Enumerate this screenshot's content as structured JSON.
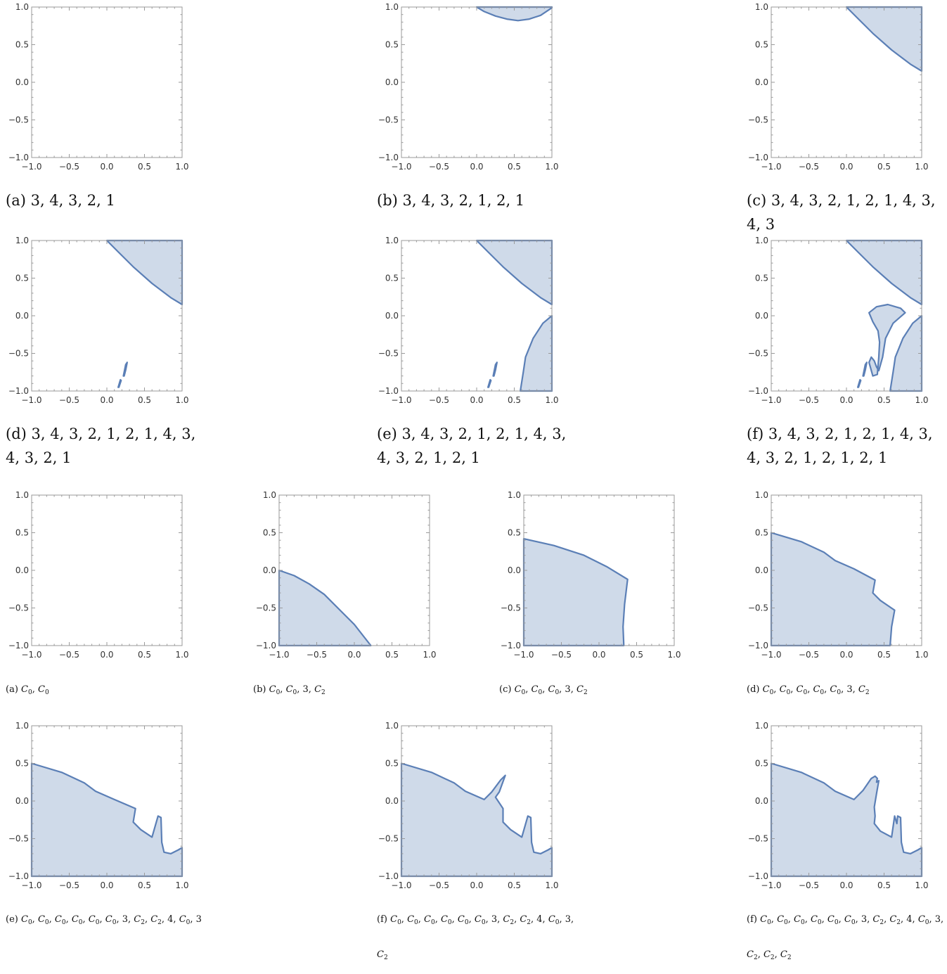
{
  "colors": {
    "fill": "#cfdae9",
    "stroke": "#5b7fb6",
    "frame": "#9a9a9a"
  },
  "chart_data": [
    {
      "type": "area",
      "axis": {
        "xlim": [
          -1,
          1
        ],
        "ylim": [
          -1,
          1
        ],
        "ticks": [
          "-1.0",
          "-0.5",
          "0.0",
          "0.5",
          "1.0"
        ]
      },
      "caption": {
        "label": "(a)",
        "text": "3, 4, 3, 2, 1"
      },
      "regions": []
    },
    {
      "type": "area",
      "axis": {
        "xlim": [
          -1,
          1
        ],
        "ylim": [
          -1,
          1
        ]
      },
      "caption": {
        "label": "(b)",
        "text": "3, 4, 3, 2, 1, 2, 1"
      },
      "regions": [
        [
          [
            0,
            1
          ],
          [
            0.1,
            0.94
          ],
          [
            0.25,
            0.88
          ],
          [
            0.4,
            0.84
          ],
          [
            0.55,
            0.82
          ],
          [
            0.7,
            0.84
          ],
          [
            0.85,
            0.89
          ],
          [
            1,
            0.99
          ],
          [
            1,
            1
          ]
        ]
      ]
    },
    {
      "type": "area",
      "axis": {
        "xlim": [
          -1,
          1
        ],
        "ylim": [
          -1,
          1
        ]
      },
      "caption": {
        "label": "(c)",
        "text": "3, 4, 3, 2, 1, 2, 1, 4, 3, 4, 3"
      },
      "regions": [
        [
          [
            0,
            1
          ],
          [
            1,
            1
          ],
          [
            1,
            0.15
          ],
          [
            0.85,
            0.24
          ],
          [
            0.6,
            0.43
          ],
          [
            0.35,
            0.65
          ],
          [
            0.15,
            0.85
          ]
        ]
      ]
    },
    {
      "type": "area",
      "axis": {
        "xlim": [
          -1,
          1
        ],
        "ylim": [
          -1,
          1
        ]
      },
      "caption": {
        "label": "(d)",
        "text": "3, 4, 3, 2, 1, 2, 1, 4, 3, 4, 3, 2, 1"
      },
      "regions": [
        [
          [
            0,
            1
          ],
          [
            1,
            1
          ],
          [
            1,
            0.15
          ],
          [
            0.85,
            0.24
          ],
          [
            0.6,
            0.43
          ],
          [
            0.35,
            0.65
          ],
          [
            0.15,
            0.85
          ]
        ],
        [
          [
            0.22,
            -0.8
          ],
          [
            0.25,
            -0.65
          ],
          [
            0.27,
            -0.62
          ],
          [
            0.25,
            -0.72
          ],
          [
            0.23,
            -0.8
          ]
        ],
        [
          [
            0.15,
            -0.95
          ],
          [
            0.18,
            -0.85
          ],
          [
            0.19,
            -0.86
          ],
          [
            0.16,
            -0.95
          ]
        ]
      ]
    },
    {
      "type": "area",
      "axis": {
        "xlim": [
          -1,
          1
        ],
        "ylim": [
          -1,
          1
        ]
      },
      "caption": {
        "label": "(e)",
        "text": "3, 4, 3, 2, 1, 2, 1, 4, 3, 4, 3, 2, 1, 2, 1"
      },
      "regions": [
        [
          [
            0,
            1
          ],
          [
            1,
            1
          ],
          [
            1,
            0.15
          ],
          [
            0.85,
            0.24
          ],
          [
            0.6,
            0.43
          ],
          [
            0.35,
            0.65
          ],
          [
            0.15,
            0.85
          ]
        ],
        [
          [
            1,
            0
          ],
          [
            0.88,
            -0.1
          ],
          [
            0.75,
            -0.3
          ],
          [
            0.65,
            -0.55
          ],
          [
            0.62,
            -0.75
          ],
          [
            0.58,
            -1
          ],
          [
            1,
            -1
          ]
        ],
        [
          [
            0.22,
            -0.8
          ],
          [
            0.25,
            -0.65
          ],
          [
            0.27,
            -0.62
          ],
          [
            0.25,
            -0.72
          ],
          [
            0.23,
            -0.8
          ]
        ],
        [
          [
            0.15,
            -0.95
          ],
          [
            0.18,
            -0.85
          ],
          [
            0.19,
            -0.86
          ],
          [
            0.16,
            -0.95
          ]
        ]
      ]
    },
    {
      "type": "area",
      "axis": {
        "xlim": [
          -1,
          1
        ],
        "ylim": [
          -1,
          1
        ]
      },
      "caption": {
        "label": "(f)",
        "text": "3, 4, 3, 2, 1, 2, 1, 4, 3, 4, 3, 2, 1, 2, 1, 2, 1"
      },
      "regions": [
        [
          [
            0,
            1
          ],
          [
            1,
            1
          ],
          [
            1,
            0.15
          ],
          [
            0.85,
            0.24
          ],
          [
            0.6,
            0.43
          ],
          [
            0.35,
            0.65
          ],
          [
            0.15,
            0.85
          ]
        ],
        [
          [
            1,
            0
          ],
          [
            0.88,
            -0.1
          ],
          [
            0.75,
            -0.3
          ],
          [
            0.65,
            -0.55
          ],
          [
            0.62,
            -0.75
          ],
          [
            0.58,
            -1
          ],
          [
            1,
            -1
          ]
        ],
        [
          [
            0.3,
            0.04
          ],
          [
            0.4,
            0.12
          ],
          [
            0.55,
            0.15
          ],
          [
            0.72,
            0.1
          ],
          [
            0.78,
            0.04
          ],
          [
            0.62,
            -0.1
          ],
          [
            0.52,
            -0.3
          ],
          [
            0.48,
            -0.55
          ],
          [
            0.43,
            -0.73
          ],
          [
            0.4,
            -0.68
          ],
          [
            0.37,
            -0.6
          ],
          [
            0.33,
            -0.55
          ],
          [
            0.3,
            -0.62
          ],
          [
            0.35,
            -0.8
          ],
          [
            0.41,
            -0.78
          ],
          [
            0.43,
            -0.55
          ],
          [
            0.44,
            -0.35
          ],
          [
            0.42,
            -0.2
          ],
          [
            0.35,
            -0.08
          ]
        ],
        [
          [
            0.22,
            -0.8
          ],
          [
            0.25,
            -0.65
          ],
          [
            0.27,
            -0.62
          ],
          [
            0.25,
            -0.72
          ],
          [
            0.23,
            -0.8
          ]
        ],
        [
          [
            0.15,
            -0.95
          ],
          [
            0.18,
            -0.85
          ],
          [
            0.19,
            -0.86
          ],
          [
            0.16,
            -0.95
          ]
        ]
      ]
    },
    {
      "type": "area",
      "axis": {
        "xlim": [
          -1,
          1
        ],
        "ylim": [
          -1,
          1
        ]
      },
      "caption": {
        "label": "(a)",
        "text": "C0, C0"
      },
      "regions": []
    },
    {
      "type": "area",
      "axis": {
        "xlim": [
          -1,
          1
        ],
        "ylim": [
          -1,
          1
        ]
      },
      "caption": {
        "label": "(b)",
        "text": "C0, C0, 3, C2"
      },
      "regions": [
        [
          [
            -1,
            0
          ],
          [
            -0.8,
            -0.07
          ],
          [
            -0.6,
            -0.18
          ],
          [
            -0.4,
            -0.32
          ],
          [
            -0.2,
            -0.52
          ],
          [
            0,
            -0.72
          ],
          [
            0.22,
            -1
          ],
          [
            -1,
            -1
          ]
        ]
      ]
    },
    {
      "type": "area",
      "axis": {
        "xlim": [
          -1,
          1
        ],
        "ylim": [
          -1,
          1
        ]
      },
      "caption": {
        "label": "(c)",
        "text": "C0, C0, C0, 3, C2"
      },
      "regions": [
        [
          [
            -1,
            0.42
          ],
          [
            -0.6,
            0.33
          ],
          [
            -0.2,
            0.2
          ],
          [
            0.1,
            0.05
          ],
          [
            0.38,
            -0.12
          ],
          [
            0.34,
            -0.45
          ],
          [
            0.32,
            -0.75
          ],
          [
            0.33,
            -1
          ],
          [
            -1,
            -1
          ]
        ]
      ]
    },
    {
      "type": "area",
      "axis": {
        "xlim": [
          -1,
          1
        ],
        "ylim": [
          -1,
          1
        ]
      },
      "caption": {
        "label": "(d)",
        "text": "C0, C0, C0, C0, C0, 3, C2"
      },
      "regions": [
        [
          [
            -1,
            0.5
          ],
          [
            -0.6,
            0.38
          ],
          [
            -0.3,
            0.24
          ],
          [
            -0.15,
            0.13
          ],
          [
            0.1,
            0.02
          ],
          [
            0.38,
            -0.13
          ],
          [
            0.35,
            -0.3
          ],
          [
            0.45,
            -0.4
          ],
          [
            0.64,
            -0.53
          ],
          [
            0.6,
            -0.75
          ],
          [
            0.58,
            -1
          ],
          [
            -1,
            -1
          ]
        ]
      ]
    },
    {
      "type": "area",
      "axis": {
        "xlim": [
          -1,
          1
        ],
        "ylim": [
          -1,
          1
        ]
      },
      "caption": {
        "label": "(e)",
        "text": "C0, C0, C0, C0, C0, C0, 3, C2, C2, 4, C0, 3"
      },
      "regions": [
        [
          [
            -1,
            0.5
          ],
          [
            -0.6,
            0.38
          ],
          [
            -0.3,
            0.24
          ],
          [
            -0.15,
            0.13
          ],
          [
            0.1,
            0.02
          ],
          [
            0.38,
            -0.1
          ],
          [
            0.35,
            -0.28
          ],
          [
            0.45,
            -0.38
          ],
          [
            0.6,
            -0.48
          ],
          [
            0.68,
            -0.2
          ],
          [
            0.72,
            -0.22
          ],
          [
            0.73,
            -0.55
          ],
          [
            0.76,
            -0.68
          ],
          [
            0.85,
            -0.7
          ],
          [
            0.95,
            -0.65
          ],
          [
            1,
            -0.62
          ],
          [
            1,
            -1
          ],
          [
            -1,
            -1
          ]
        ]
      ]
    },
    {
      "type": "area",
      "axis": {
        "xlim": [
          -1,
          1
        ],
        "ylim": [
          -1,
          1
        ]
      },
      "caption": {
        "label": "(f)",
        "text": "C0, C0, C0, C0, C0, C0, 3, C2, C2, 4, C0, 3, C2"
      },
      "regions": [
        [
          [
            -1,
            0.5
          ],
          [
            -0.6,
            0.38
          ],
          [
            -0.3,
            0.24
          ],
          [
            -0.15,
            0.13
          ],
          [
            0.1,
            0.02
          ],
          [
            0.2,
            0.12
          ],
          [
            0.32,
            0.28
          ],
          [
            0.38,
            0.34
          ],
          [
            0.3,
            0.12
          ],
          [
            0.25,
            0.05
          ],
          [
            0.35,
            -0.1
          ],
          [
            0.35,
            -0.28
          ],
          [
            0.45,
            -0.38
          ],
          [
            0.6,
            -0.48
          ],
          [
            0.68,
            -0.2
          ],
          [
            0.72,
            -0.22
          ],
          [
            0.73,
            -0.55
          ],
          [
            0.76,
            -0.68
          ],
          [
            0.85,
            -0.7
          ],
          [
            0.95,
            -0.65
          ],
          [
            1,
            -0.62
          ],
          [
            1,
            -1
          ],
          [
            -1,
            -1
          ]
        ]
      ]
    },
    {
      "type": "area",
      "axis": {
        "xlim": [
          -1,
          1
        ],
        "ylim": [
          -1,
          1
        ]
      },
      "caption": {
        "label": "(f)",
        "text": "C0, C0, C0, C0, C0, C0, 3, C2, C2, 4, C0, 3, C2, C2, C2"
      },
      "regions": [
        [
          [
            -1,
            0.5
          ],
          [
            -0.6,
            0.38
          ],
          [
            -0.3,
            0.24
          ],
          [
            -0.15,
            0.13
          ],
          [
            0.1,
            0.02
          ],
          [
            0.22,
            0.14
          ],
          [
            0.33,
            0.3
          ],
          [
            0.38,
            0.33
          ],
          [
            0.41,
            0.3
          ],
          [
            0.4,
            0.25
          ],
          [
            0.43,
            0.27
          ],
          [
            0.4,
            0.1
          ],
          [
            0.37,
            -0.08
          ],
          [
            0.38,
            -0.2
          ],
          [
            0.37,
            -0.3
          ],
          [
            0.45,
            -0.4
          ],
          [
            0.6,
            -0.48
          ],
          [
            0.64,
            -0.2
          ],
          [
            0.67,
            -0.3
          ],
          [
            0.68,
            -0.2
          ],
          [
            0.72,
            -0.22
          ],
          [
            0.73,
            -0.55
          ],
          [
            0.76,
            -0.68
          ],
          [
            0.85,
            -0.7
          ],
          [
            0.95,
            -0.65
          ],
          [
            1,
            -0.62
          ],
          [
            1,
            -1
          ],
          [
            -1,
            -1
          ]
        ]
      ]
    }
  ]
}
